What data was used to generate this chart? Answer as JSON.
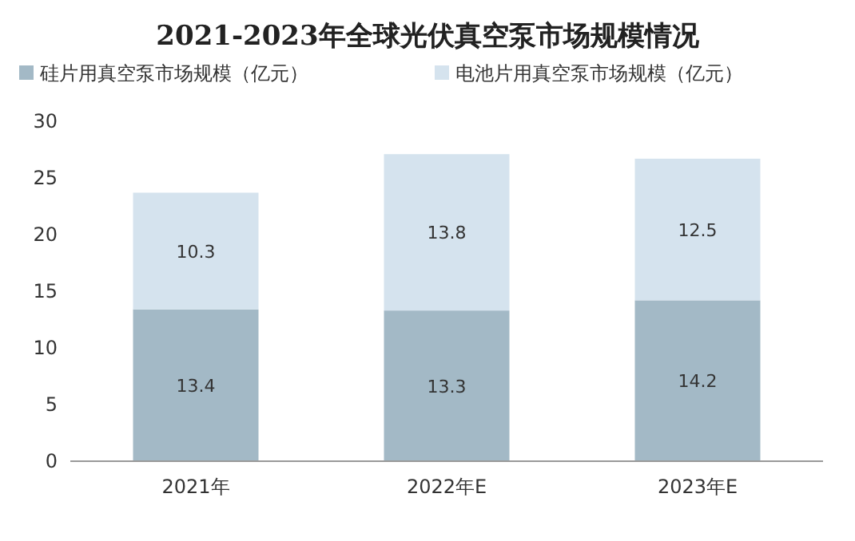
{
  "chart_data": {
    "type": "bar",
    "title": "2021-2023年全球光伏真空泵市场规模情况",
    "categories": [
      "2021年",
      "2022年E",
      "2023年E"
    ],
    "stacked": true,
    "data_labels": true,
    "legend": "top",
    "grid": false,
    "ylim": [
      0,
      30
    ],
    "yticks": [
      0,
      5,
      10,
      15,
      20,
      25,
      30
    ],
    "series": [
      {
        "name": "硅片用真空泵市场规模（亿元）",
        "color": "#a3b9c6",
        "values": [
          13.4,
          13.3,
          14.2
        ]
      },
      {
        "name": "电池片用真空泵市场规模（亿元）",
        "color": "#d5e3ee",
        "values": [
          10.3,
          13.8,
          12.5
        ]
      }
    ]
  }
}
